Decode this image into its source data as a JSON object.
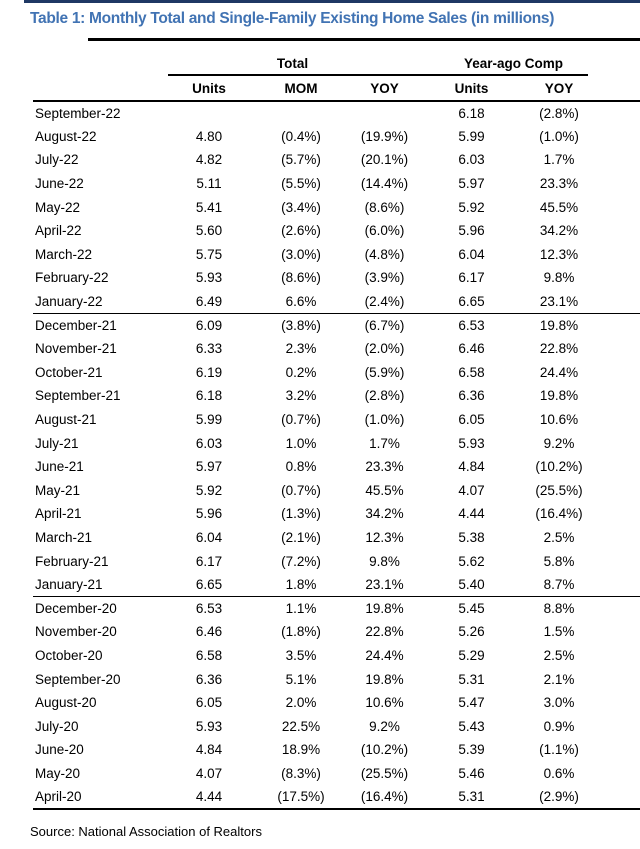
{
  "page": {
    "title": "Table 1: Monthly Total and Single-Family Existing Home Sales (in millions)",
    "source": "Source: National Association of Realtors"
  },
  "colors": {
    "top_bar": "#1F3864",
    "title_text": "#4173B3",
    "rule": "#000000"
  },
  "table": {
    "group_headers": {
      "total": "Total",
      "year_ago": "Year-ago Comp"
    },
    "column_headers": {
      "units": "Units",
      "mom": "MOM",
      "yoy": "YOY",
      "ya_units": "Units",
      "ya_yoy": "YOY"
    },
    "rows": [
      [
        "September-22",
        "",
        "",
        "",
        "6.18",
        "(2.8%)"
      ],
      [
        "August-22",
        "4.80",
        "(0.4%)",
        "(19.9%)",
        "5.99",
        "(1.0%)"
      ],
      [
        "July-22",
        "4.82",
        "(5.7%)",
        "(20.1%)",
        "6.03",
        "1.7%"
      ],
      [
        "June-22",
        "5.11",
        "(5.5%)",
        "(14.4%)",
        "5.97",
        "23.3%"
      ],
      [
        "May-22",
        "5.41",
        "(3.4%)",
        "(8.6%)",
        "5.92",
        "45.5%"
      ],
      [
        "April-22",
        "5.60",
        "(2.6%)",
        "(6.0%)",
        "5.96",
        "34.2%"
      ],
      [
        "March-22",
        "5.75",
        "(3.0%)",
        "(4.8%)",
        "6.04",
        "12.3%"
      ],
      [
        "February-22",
        "5.93",
        "(8.6%)",
        "(3.9%)",
        "6.17",
        "9.8%"
      ],
      [
        "January-22",
        "6.49",
        "6.6%",
        "(2.4%)",
        "6.65",
        "23.1%"
      ],
      [
        "December-21",
        "6.09",
        "(3.8%)",
        "(6.7%)",
        "6.53",
        "19.8%"
      ],
      [
        "November-21",
        "6.33",
        "2.3%",
        "(2.0%)",
        "6.46",
        "22.8%"
      ],
      [
        "October-21",
        "6.19",
        "0.2%",
        "(5.9%)",
        "6.58",
        "24.4%"
      ],
      [
        "September-21",
        "6.18",
        "3.2%",
        "(2.8%)",
        "6.36",
        "19.8%"
      ],
      [
        "August-21",
        "5.99",
        "(0.7%)",
        "(1.0%)",
        "6.05",
        "10.6%"
      ],
      [
        "July-21",
        "6.03",
        "1.0%",
        "1.7%",
        "5.93",
        "9.2%"
      ],
      [
        "June-21",
        "5.97",
        "0.8%",
        "23.3%",
        "4.84",
        "(10.2%)"
      ],
      [
        "May-21",
        "5.92",
        "(0.7%)",
        "45.5%",
        "4.07",
        "(25.5%)"
      ],
      [
        "April-21",
        "5.96",
        "(1.3%)",
        "34.2%",
        "4.44",
        "(16.4%)"
      ],
      [
        "March-21",
        "6.04",
        "(2.1%)",
        "12.3%",
        "5.38",
        "2.5%"
      ],
      [
        "February-21",
        "6.17",
        "(7.2%)",
        "9.8%",
        "5.62",
        "5.8%"
      ],
      [
        "January-21",
        "6.65",
        "1.8%",
        "23.1%",
        "5.40",
        "8.7%"
      ],
      [
        "December-20",
        "6.53",
        "1.1%",
        "19.8%",
        "5.45",
        "8.8%"
      ],
      [
        "November-20",
        "6.46",
        "(1.8%)",
        "22.8%",
        "5.26",
        "1.5%"
      ],
      [
        "October-20",
        "6.58",
        "3.5%",
        "24.4%",
        "5.29",
        "2.5%"
      ],
      [
        "September-20",
        "6.36",
        "5.1%",
        "19.8%",
        "5.31",
        "2.1%"
      ],
      [
        "August-20",
        "6.05",
        "2.0%",
        "10.6%",
        "5.47",
        "3.0%"
      ],
      [
        "July-20",
        "5.93",
        "22.5%",
        "9.2%",
        "5.43",
        "0.9%"
      ],
      [
        "June-20",
        "4.84",
        "18.9%",
        "(10.2%)",
        "5.39",
        "(1.1%)"
      ],
      [
        "May-20",
        "4.07",
        "(8.3%)",
        "(25.5%)",
        "5.46",
        "0.6%"
      ],
      [
        "April-20",
        "4.44",
        "(17.5%)",
        "(16.4%)",
        "5.31",
        "(2.9%)"
      ]
    ],
    "section_breaks_after_row_indices": [
      8,
      20
    ]
  }
}
